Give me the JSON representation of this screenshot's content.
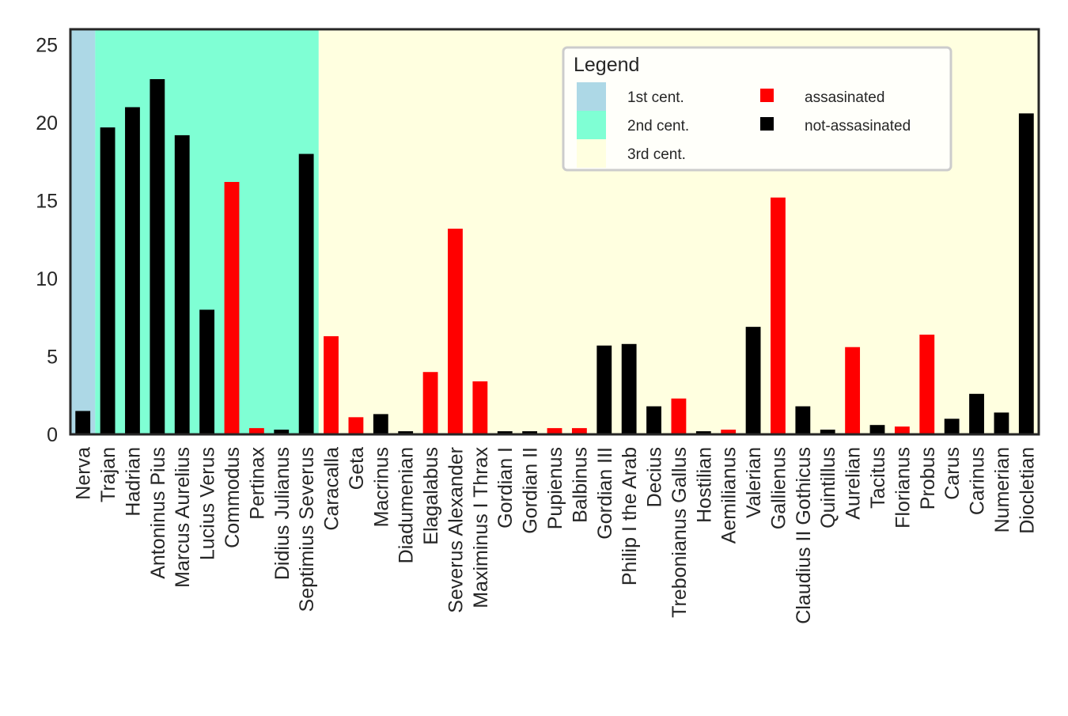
{
  "chart_data": {
    "type": "bar",
    "title": "",
    "xlabel": "",
    "ylabel": "",
    "ylim": [
      0,
      26
    ],
    "yticks": [
      0,
      5,
      10,
      15,
      20,
      25
    ],
    "grid": false,
    "categories": [
      "Nerva",
      "Trajan",
      "Hadrian",
      "Antoninus Pius",
      "Marcus Aurelius",
      "Lucius Verus",
      "Commodus",
      "Pertinax",
      "Didius Julianus",
      "Septimius Severus",
      "Caracalla",
      "Geta",
      "Macrinus",
      "Diadumenian",
      "Elagalabus",
      "Severus Alexander",
      "Maximinus I Thrax",
      "Gordian I",
      "Gordian II",
      "Pupienus",
      "Balbinus",
      "Gordian III",
      "Philip I the Arab",
      "Decius",
      "Trebonianus Gallus",
      "Hostilian",
      "Aemilianus",
      "Valerian",
      "Gallienus",
      "Claudius II Gothicus",
      "Quintillus",
      "Aurelian",
      "Tacitus",
      "Florianus",
      "Probus",
      "Carus",
      "Carinus",
      "Numerian",
      "Diocletian"
    ],
    "values": [
      1.5,
      19.7,
      21.0,
      22.8,
      19.2,
      8.0,
      16.2,
      0.4,
      0.3,
      18.0,
      6.3,
      1.1,
      1.3,
      0.2,
      4.0,
      13.2,
      3.4,
      0.2,
      0.2,
      0.4,
      0.4,
      5.7,
      5.8,
      1.8,
      2.3,
      0.2,
      0.3,
      6.9,
      15.2,
      1.8,
      0.3,
      5.6,
      0.6,
      0.5,
      6.4,
      1.0,
      2.6,
      1.4,
      20.6
    ],
    "assassinated": [
      false,
      false,
      false,
      false,
      false,
      false,
      true,
      true,
      false,
      false,
      true,
      true,
      false,
      false,
      true,
      true,
      true,
      false,
      false,
      true,
      true,
      false,
      false,
      false,
      true,
      false,
      true,
      false,
      true,
      false,
      false,
      true,
      false,
      true,
      true,
      false,
      false,
      false,
      false
    ],
    "century_bands": [
      {
        "label": "1st cent.",
        "color": "#add8e6",
        "start_index": 0,
        "end_index": 0
      },
      {
        "label": "2nd cent.",
        "color": "#7fffd4",
        "start_index": 1,
        "end_index": 9
      },
      {
        "label": "3rd cent.",
        "color": "#ffffe0",
        "start_index": 10,
        "end_index": 38
      }
    ],
    "legend": {
      "title": "Legend",
      "placement": "top-right",
      "entries": [
        {
          "label": "1st cent.",
          "color": "#add8e6"
        },
        {
          "label": "2nd cent.",
          "color": "#7fffd4"
        },
        {
          "label": "3rd cent.",
          "color": "#ffffe0"
        },
        {
          "label": "assasinated",
          "color": "#ff0000"
        },
        {
          "label": "not-assasinated",
          "color": "#000000"
        }
      ]
    },
    "colors": {
      "assassinated": "#ff0000",
      "not_assassinated": "#000000",
      "frame": "#262626"
    }
  }
}
